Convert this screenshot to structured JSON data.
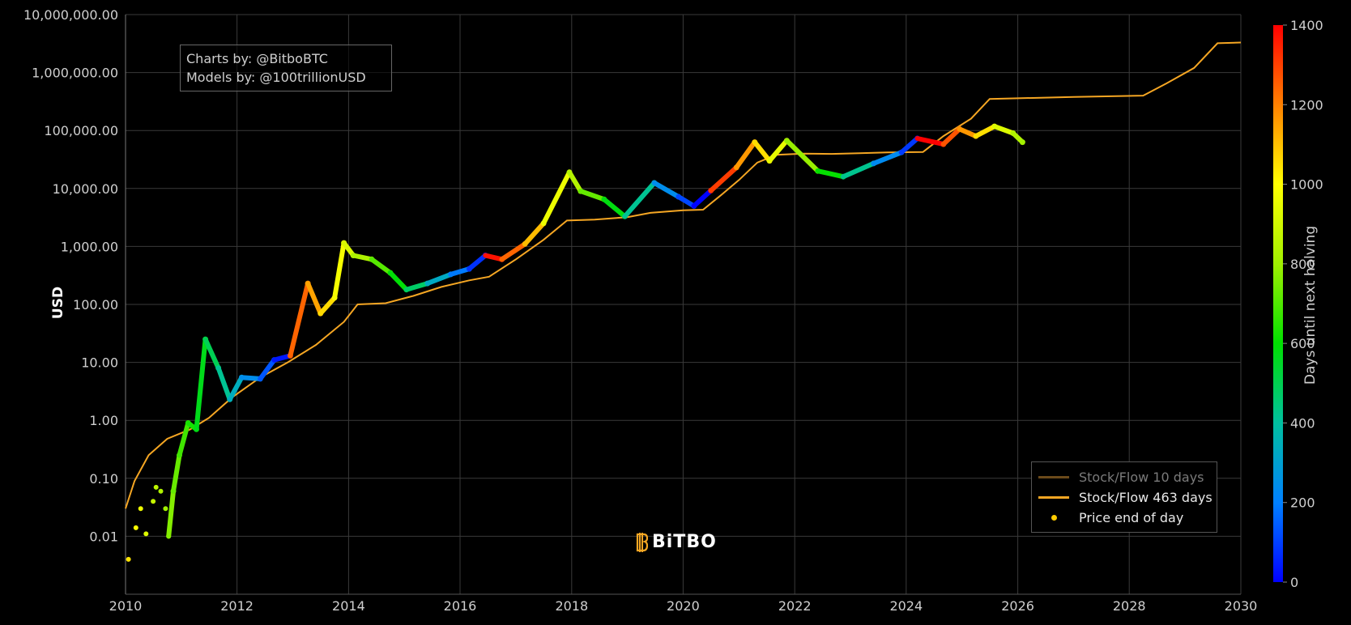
{
  "chart_data": {
    "type": "scatter",
    "ylabel": "USD",
    "y_scale": "log",
    "ylim": [
      0.001,
      10000000
    ],
    "xlim": [
      "2010-01-01",
      "2030-01-01"
    ],
    "y_tick_labels": [
      "10,000,000.00",
      "1,000,000.00",
      "100,000.00",
      "10,000.00",
      "1,000.00",
      "100.00",
      "10.00",
      "1.00",
      "0.10",
      "0.01"
    ],
    "y_tick_values": [
      10000000,
      1000000,
      100000,
      10000,
      1000,
      100,
      10,
      1,
      0.1,
      0.01
    ],
    "x_tick_labels": [
      "2010",
      "2012",
      "2014",
      "2016",
      "2018",
      "2020",
      "2022",
      "2024",
      "2026",
      "2028",
      "2030"
    ],
    "grid": true,
    "legend_position": "bottom-right",
    "colorbar": {
      "title": "Days until next halving",
      "range": [
        0,
        1400
      ],
      "tick_labels": [
        "0",
        "200",
        "400",
        "600",
        "800",
        "1000",
        "1200",
        "1400"
      ],
      "colors": [
        "#0000ff",
        "#0080ff",
        "#00c0a0",
        "#00e000",
        "#a0f000",
        "#ffff00",
        "#ff8000",
        "#ff0000"
      ]
    },
    "series": [
      {
        "name": "Stock/Flow 10 days",
        "color": "#6b4a1a",
        "visible": false,
        "points": []
      },
      {
        "name": "Stock/Flow 463 days",
        "color": "#f5a623",
        "points": [
          [
            "2010-01-01",
            0.03
          ],
          [
            "2010-03-01",
            0.09
          ],
          [
            "2010-06-01",
            0.25
          ],
          [
            "2010-10-01",
            0.48
          ],
          [
            "2011-03-01",
            0.7
          ],
          [
            "2011-07-01",
            1.1
          ],
          [
            "2011-12-01",
            2.5
          ],
          [
            "2012-06-01",
            5.5
          ],
          [
            "2012-11-28",
            10
          ],
          [
            "2013-06-01",
            20
          ],
          [
            "2013-12-01",
            50
          ],
          [
            "2014-03-01",
            100
          ],
          [
            "2014-09-01",
            105
          ],
          [
            "2015-03-01",
            140
          ],
          [
            "2015-09-01",
            200
          ],
          [
            "2016-03-01",
            260
          ],
          [
            "2016-07-09",
            300
          ],
          [
            "2017-01-01",
            600
          ],
          [
            "2017-07-01",
            1300
          ],
          [
            "2017-12-01",
            2800
          ],
          [
            "2018-06-01",
            2900
          ],
          [
            "2019-01-01",
            3200
          ],
          [
            "2019-06-01",
            3800
          ],
          [
            "2020-01-01",
            4200
          ],
          [
            "2020-05-11",
            4300
          ],
          [
            "2020-09-01",
            7500
          ],
          [
            "2021-01-01",
            14000
          ],
          [
            "2021-05-01",
            28000
          ],
          [
            "2021-09-01",
            38000
          ],
          [
            "2022-03-01",
            40000
          ],
          [
            "2022-09-01",
            39500
          ],
          [
            "2023-03-01",
            40500
          ],
          [
            "2023-09-01",
            42000
          ],
          [
            "2024-04-20",
            42500
          ],
          [
            "2024-09-01",
            80000
          ],
          [
            "2025-03-01",
            160000
          ],
          [
            "2025-07-01",
            350000
          ],
          [
            "2026-01-01",
            360000
          ],
          [
            "2027-01-01",
            380000
          ],
          [
            "2028-04-01",
            400000
          ],
          [
            "2028-09-01",
            650000
          ],
          [
            "2029-03-01",
            1200000
          ],
          [
            "2029-08-01",
            3200000
          ],
          [
            "2030-01-01",
            3300000
          ]
        ]
      },
      {
        "name": "Price end of day",
        "color": "#ffdd00",
        "points": [
          [
            "2010-01-20",
            0.004
          ],
          [
            "2010-03-10",
            0.014
          ],
          [
            "2010-04-10",
            0.03
          ],
          [
            "2010-05-15",
            0.011
          ],
          [
            "2010-07-01",
            0.04
          ],
          [
            "2010-07-20",
            0.07
          ],
          [
            "2010-08-20",
            0.06
          ],
          [
            "2010-09-20",
            0.03
          ],
          [
            "2010-10-10",
            0.01
          ],
          [
            "2010-11-10",
            0.06
          ],
          [
            "2010-12-20",
            0.25
          ],
          [
            "2011-02-15",
            0.9
          ],
          [
            "2011-04-10",
            0.7
          ],
          [
            "2011-06-08",
            25
          ],
          [
            "2011-09-01",
            8
          ],
          [
            "2011-11-15",
            2.3
          ],
          [
            "2012-02-01",
            5.5
          ],
          [
            "2012-06-01",
            5.2
          ],
          [
            "2012-09-01",
            11
          ],
          [
            "2012-12-15",
            13
          ],
          [
            "2013-04-09",
            230
          ],
          [
            "2013-07-01",
            70
          ],
          [
            "2013-10-01",
            130
          ],
          [
            "2013-12-01",
            1150
          ],
          [
            "2014-02-01",
            700
          ],
          [
            "2014-06-01",
            600
          ],
          [
            "2014-10-01",
            350
          ],
          [
            "2015-01-15",
            180
          ],
          [
            "2015-06-01",
            230
          ],
          [
            "2015-11-01",
            330
          ],
          [
            "2016-03-01",
            410
          ],
          [
            "2016-06-15",
            700
          ],
          [
            "2016-10-01",
            600
          ],
          [
            "2017-03-01",
            1100
          ],
          [
            "2017-07-01",
            2500
          ],
          [
            "2017-12-17",
            19000
          ],
          [
            "2018-03-01",
            9000
          ],
          [
            "2018-08-01",
            6500
          ],
          [
            "2018-12-15",
            3300
          ],
          [
            "2019-06-26",
            12500
          ],
          [
            "2019-12-01",
            7200
          ],
          [
            "2020-03-12",
            5000
          ],
          [
            "2020-07-01",
            9200
          ],
          [
            "2020-12-15",
            23000
          ],
          [
            "2021-04-14",
            63000
          ],
          [
            "2021-07-20",
            30000
          ],
          [
            "2021-11-10",
            67000
          ],
          [
            "2022-06-01",
            20000
          ],
          [
            "2022-11-15",
            16000
          ],
          [
            "2023-06-01",
            27000
          ],
          [
            "2023-12-01",
            42000
          ],
          [
            "2024-03-14",
            73000
          ],
          [
            "2024-09-01",
            58000
          ],
          [
            "2024-12-15",
            106000
          ],
          [
            "2025-04-01",
            80000
          ],
          [
            "2025-08-01",
            118000
          ],
          [
            "2025-12-01",
            90000
          ],
          [
            "2026-02-01",
            63000
          ]
        ]
      }
    ],
    "annotations": [
      "Charts by: @BitboBTC",
      "Models by: @100trillionUSD"
    ]
  },
  "credits": {
    "line1": "Charts by: @BitboBTC",
    "line2": "Models by: @100trillionUSD"
  },
  "legend": {
    "item1": "Stock/Flow 10 days",
    "item2": "Stock/Flow 463 days",
    "item3": "Price end of day"
  },
  "logo": {
    "text": "BiTBO"
  }
}
